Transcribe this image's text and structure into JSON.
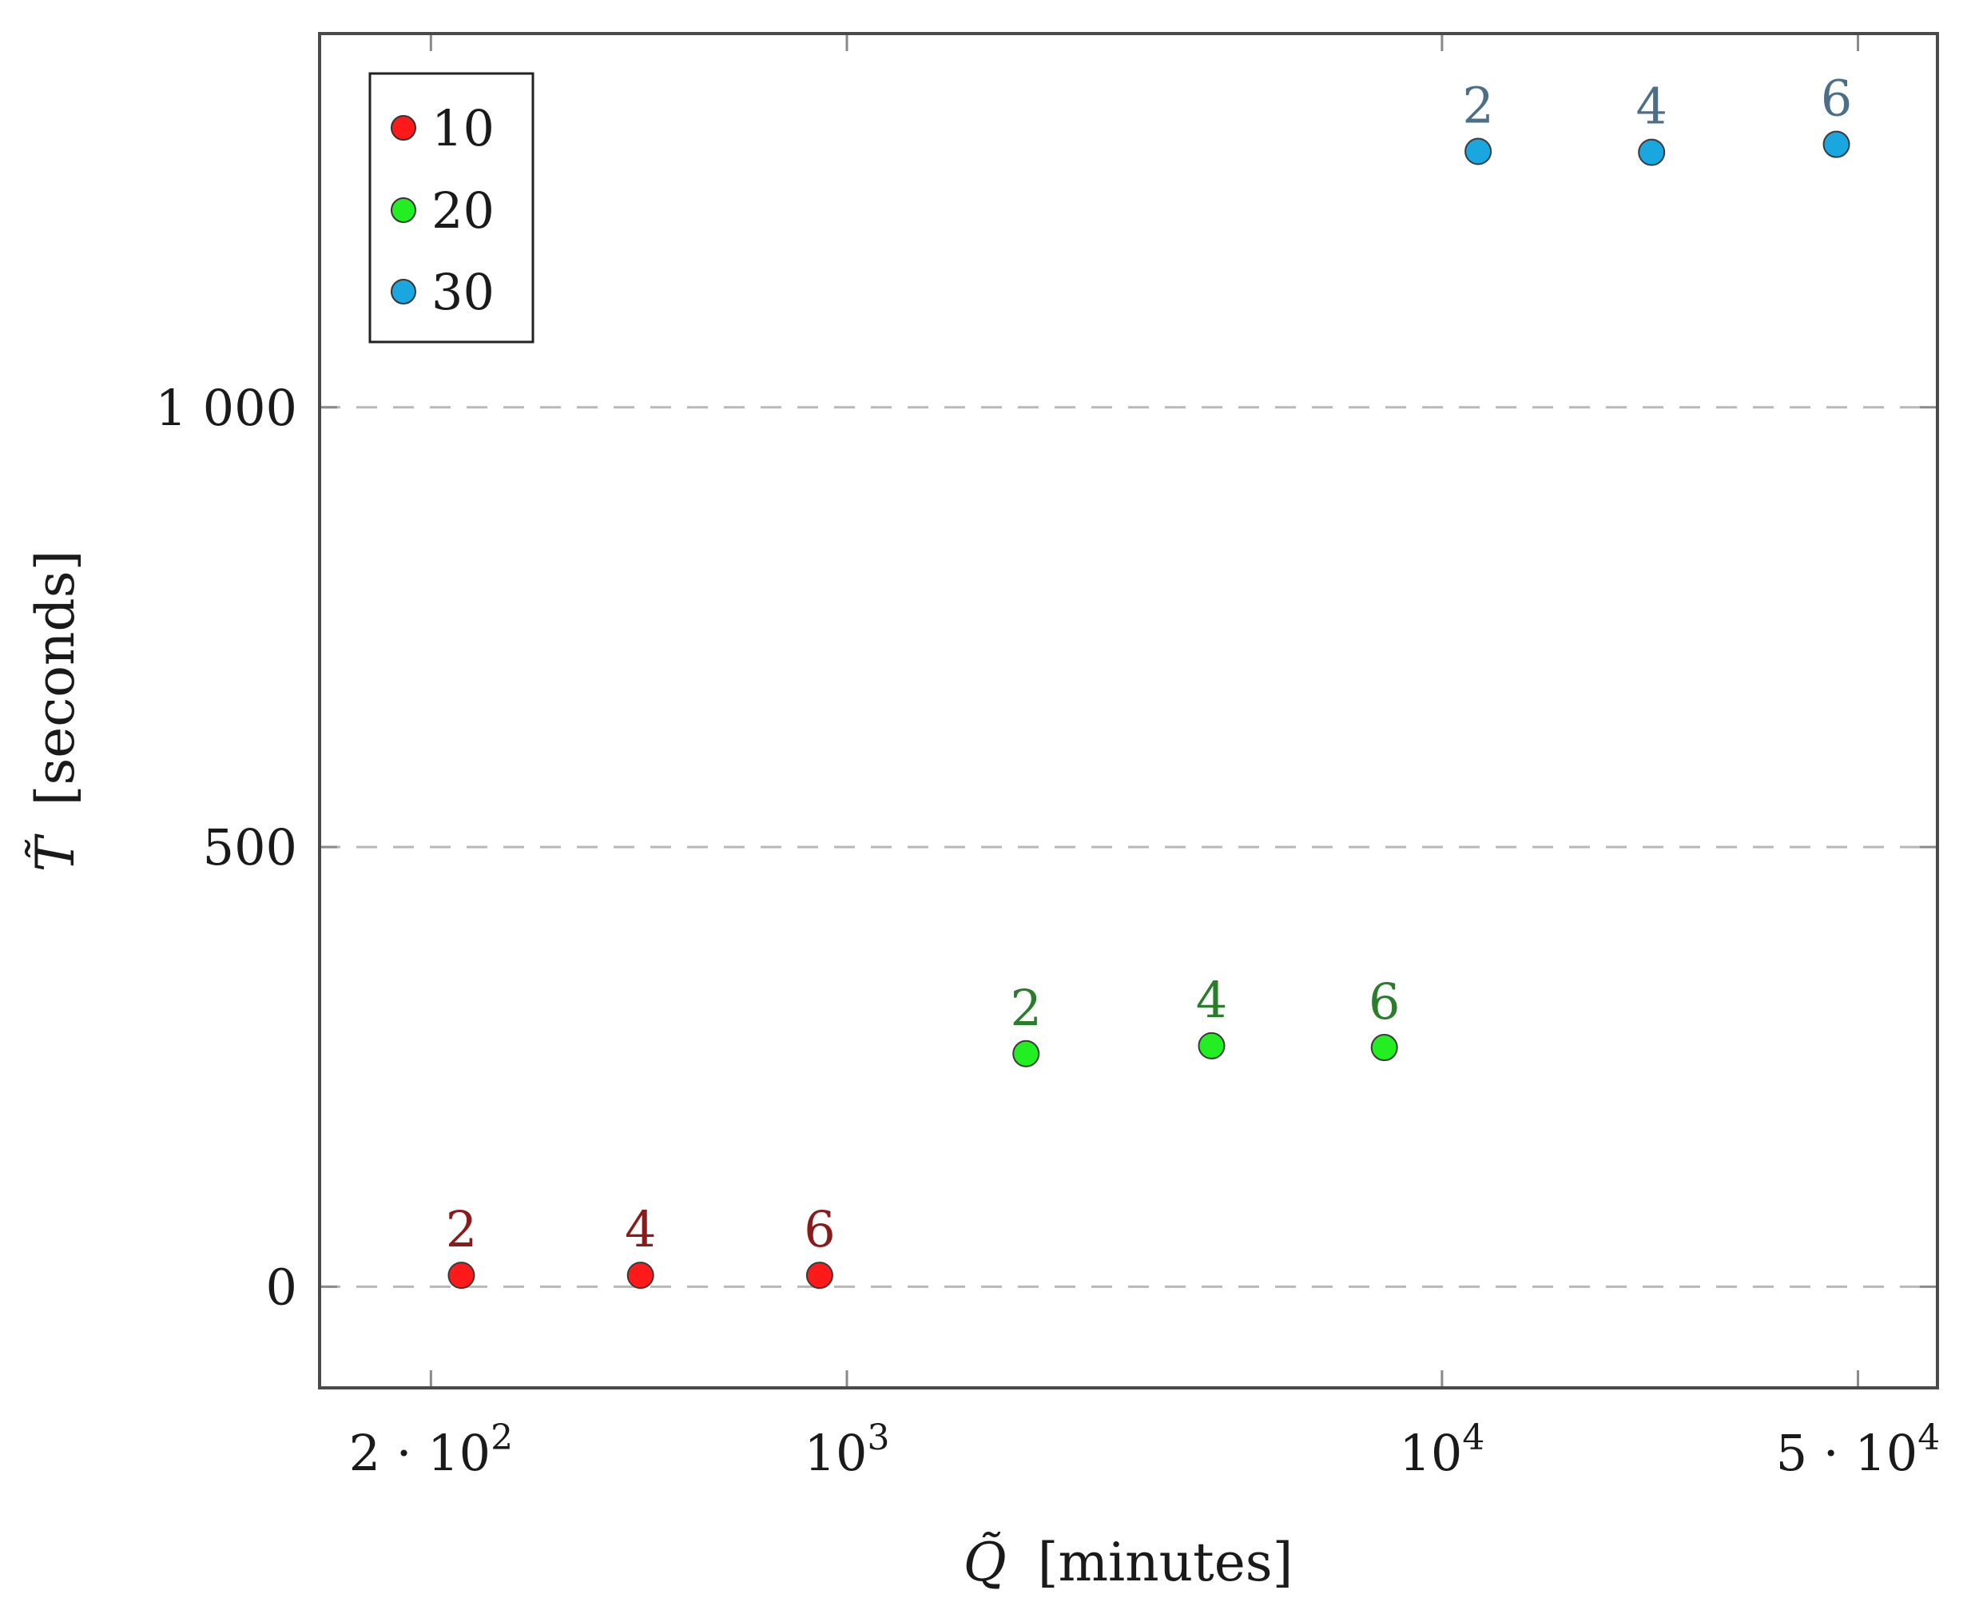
{
  "chart_data": {
    "type": "scatter",
    "title": "",
    "xlabel_symbol": "Q̃",
    "xlabel_unit": "[minutes]",
    "ylabel_symbol": "T̃",
    "ylabel_unit": "[seconds]",
    "x_scale": "log",
    "xlim": [
      130,
      68000
    ],
    "ylim": [
      -115,
      1425
    ],
    "x_ticks": [
      {
        "value": 200,
        "base": "2 · 10",
        "exp": "2"
      },
      {
        "value": 1000,
        "base": "10",
        "exp": "3"
      },
      {
        "value": 10000,
        "base": "10",
        "exp": "4"
      },
      {
        "value": 50000,
        "base": "5 · 10",
        "exp": "4"
      }
    ],
    "y_ticks": [
      {
        "value": 0,
        "label": "0"
      },
      {
        "value": 500,
        "label": "500"
      },
      {
        "value": 1000,
        "label": "1 000"
      }
    ],
    "grid": "horizontal-dashed",
    "legend_position": "top-left",
    "series": [
      {
        "name": "10",
        "color": "#ff1a1a",
        "label_color": "#8b1a1a",
        "points": [
          {
            "x": 225,
            "y": 13,
            "label": "2"
          },
          {
            "x": 450,
            "y": 13,
            "label": "4"
          },
          {
            "x": 900,
            "y": 13,
            "label": "6"
          }
        ]
      },
      {
        "name": "20",
        "color": "#22ee22",
        "label_color": "#2a7d2a",
        "points": [
          {
            "x": 2000,
            "y": 265,
            "label": "2"
          },
          {
            "x": 4100,
            "y": 274,
            "label": "4"
          },
          {
            "x": 8000,
            "y": 272,
            "label": "6"
          }
        ]
      },
      {
        "name": "30",
        "color": "#1aa7e0",
        "label_color": "#4d6e87",
        "points": [
          {
            "x": 11500,
            "y": 1291,
            "label": "2"
          },
          {
            "x": 22500,
            "y": 1290,
            "label": "4"
          },
          {
            "x": 46000,
            "y": 1299,
            "label": "6"
          }
        ]
      }
    ]
  }
}
